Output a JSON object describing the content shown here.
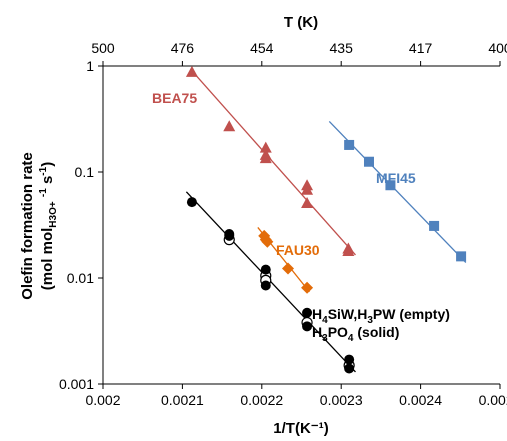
{
  "chart_data": {
    "type": "scatter",
    "xlabel": "1/T(K⁻¹)",
    "ylabel_line1": "Olefin formation rate",
    "ylabel_line2_parts": [
      "(mol mol",
      "H3O+",
      " ",
      "-1",
      " s",
      "-1",
      ")"
    ],
    "top_axis_title": "T (K)",
    "xlim": [
      0.002,
      0.0025
    ],
    "ylim": [
      0.001,
      1
    ],
    "yscale": "log",
    "x_ticks": [
      "0.002",
      "0.0021",
      "0.0022",
      "0.0023",
      "0.0024",
      "0.0025"
    ],
    "x_tick_values": [
      0.002,
      0.0021,
      0.0022,
      0.0023,
      0.0024,
      0.0025
    ],
    "y_ticks": [
      "0.001",
      "0.01",
      "0.1",
      "1"
    ],
    "y_tick_values": [
      0.001,
      0.01,
      0.1,
      1
    ],
    "top_ticks": [
      "500",
      "476",
      "454",
      "435",
      "417",
      "400"
    ],
    "top_tick_values": [
      0.002,
      0.0021,
      0.0022,
      0.0023,
      0.0024,
      0.0025
    ],
    "grid": false,
    "series": [
      {
        "name": "BEA75",
        "color": "#c0504d",
        "marker": "triangle",
        "points": [
          [
            0.002112,
            0.88
          ],
          [
            0.002159,
            0.27
          ],
          [
            0.002205,
            0.17
          ],
          [
            0.002205,
            0.145
          ],
          [
            0.002205,
            0.135
          ],
          [
            0.002257,
            0.075
          ],
          [
            0.002257,
            0.068
          ],
          [
            0.002257,
            0.051
          ],
          [
            0.002309,
            0.019
          ],
          [
            0.002309,
            0.018
          ]
        ],
        "fit": [
          [
            0.002112,
            0.9
          ],
          [
            0.002318,
            0.0165
          ]
        ]
      },
      {
        "name": "MFI45",
        "color": "#4f81bd",
        "marker": "square",
        "points": [
          [
            0.00231,
            0.18
          ],
          [
            0.002335,
            0.125
          ],
          [
            0.002362,
            0.075
          ],
          [
            0.002417,
            0.031
          ],
          [
            0.002451,
            0.016
          ]
        ],
        "fit": [
          [
            0.002285,
            0.3
          ],
          [
            0.002457,
            0.014
          ]
        ]
      },
      {
        "name": "FAU30",
        "color": "#e36c09",
        "marker": "diamond",
        "points": [
          [
            0.002203,
            0.025
          ],
          [
            0.002205,
            0.023
          ],
          [
            0.002207,
            0.022
          ],
          [
            0.002233,
            0.0123
          ],
          [
            0.002257,
            0.0081
          ]
        ],
        "fit": [
          [
            0.002195,
            0.03
          ],
          [
            0.00226,
            0.0074
          ]
        ]
      },
      {
        "name": "H₄SiW,H₃PW (empty)",
        "color": "#000000",
        "marker": "circle-open",
        "points": [
          [
            0.002159,
            0.023
          ],
          [
            0.002205,
            0.0105
          ],
          [
            0.002205,
            0.0095
          ],
          [
            0.002257,
            0.0038
          ],
          [
            0.00231,
            0.0015
          ]
        ],
        "fit": null
      },
      {
        "name": "H₃PO₄ (solid)",
        "color": "#000000",
        "marker": "circle-filled",
        "points": [
          [
            0.002112,
            0.052
          ],
          [
            0.002159,
            0.026
          ],
          [
            0.002159,
            0.025
          ],
          [
            0.002205,
            0.012
          ],
          [
            0.002205,
            0.0085
          ],
          [
            0.002257,
            0.0047
          ],
          [
            0.002257,
            0.0035
          ],
          [
            0.00231,
            0.0017
          ],
          [
            0.00231,
            0.0014
          ]
        ],
        "fit": [
          [
            0.002105,
            0.065
          ],
          [
            0.002318,
            0.0013
          ]
        ]
      }
    ],
    "labels": {
      "bea": "BEA75",
      "mfi": "MFI45",
      "fau": "FAU30",
      "hpa_parts": [
        "H",
        "4",
        "SiW,H",
        "3",
        "PW (empty)"
      ],
      "h3po4_parts": [
        "H",
        "3",
        "PO",
        "4",
        " (solid)"
      ]
    }
  }
}
